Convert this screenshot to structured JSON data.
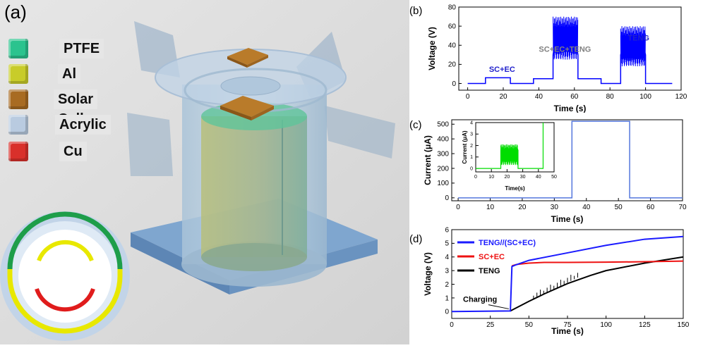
{
  "panel_a": {
    "label": "(a)",
    "legend": [
      {
        "name": "PTFE",
        "color": "#2bc38e"
      },
      {
        "name": "Al",
        "color": "#c8cc2a"
      },
      {
        "name": "Solar Cell",
        "color": "#a86b22"
      },
      {
        "name": "Acrylic",
        "color": "#b9cbe0"
      },
      {
        "name": "Cu",
        "color": "#d9302b"
      }
    ]
  },
  "chart_data": [
    {
      "id": "b",
      "label": "(b)",
      "type": "line",
      "xlabel": "Time (s)",
      "ylabel": "Voltage (V)",
      "xlim": [
        -5,
        120
      ],
      "ylim": [
        -7,
        80
      ],
      "xticks": [
        0,
        20,
        40,
        60,
        80,
        100,
        120
      ],
      "yticks": [
        0,
        20,
        40,
        60,
        80
      ],
      "annotations": [
        {
          "text": "SC+EC",
          "x": 12,
          "y": 12,
          "color": "#2222cc"
        },
        {
          "text": "SC+EC+TENG",
          "x": 40,
          "y": 33,
          "color": "#808080"
        },
        {
          "text": "TENG",
          "x": 90,
          "y": 45,
          "color": "#2222cc"
        }
      ],
      "series": [
        {
          "color": "#0000ff",
          "x": [
            0,
            10,
            10,
            24,
            24,
            37,
            37,
            48,
            48,
            50,
            60,
            62,
            62,
            75,
            75,
            86,
            86,
            88,
            98,
            100,
            100,
            115
          ],
          "y": [
            0,
            0,
            6,
            6,
            0,
            0,
            5,
            5,
            30,
            55,
            55,
            30,
            5,
            5,
            0,
            0,
            30,
            45,
            45,
            30,
            0,
            0
          ]
        }
      ],
      "noise_bands": [
        {
          "x0": 48,
          "x1": 62,
          "ymin": 25,
          "ymax": 70
        },
        {
          "x0": 86,
          "x1": 100,
          "ymin": 18,
          "ymax": 60
        }
      ]
    },
    {
      "id": "c",
      "label": "(c)",
      "type": "line",
      "xlabel": "Time (s)",
      "ylabel": "Current (μA)",
      "xlim": [
        -2,
        70
      ],
      "ylim": [
        -20,
        530
      ],
      "xticks": [
        0,
        10,
        20,
        30,
        40,
        50,
        60,
        70
      ],
      "yticks": [
        0,
        100,
        200,
        300,
        400,
        500
      ],
      "series": [
        {
          "color": "#5577dd",
          "x": [
            0,
            35.5,
            35.5,
            53.5,
            53.5,
            70
          ],
          "y": [
            0,
            0,
            520,
            520,
            0,
            0
          ]
        }
      ],
      "inset": {
        "xlabel": "Time(s)",
        "ylabel": "Current (μA)",
        "xlim": [
          0,
          50
        ],
        "ylim": [
          -0.3,
          4
        ],
        "xticks": [
          0,
          10,
          20,
          30,
          40,
          50
        ],
        "yticks": [
          0,
          1,
          2,
          3,
          4
        ],
        "series": [
          {
            "color": "#00dd00",
            "x": [
              0,
              16,
              16,
              27,
              27,
              43,
              43
            ],
            "y": [
              0,
              0,
              1.6,
              1.6,
              0,
              0,
              4
            ]
          }
        ],
        "noise_bands": [
          {
            "x0": 16,
            "x1": 27,
            "ymin": 0.3,
            "ymax": 2.1
          }
        ]
      }
    },
    {
      "id": "d",
      "label": "(d)",
      "type": "line",
      "xlabel": "Time (s)",
      "ylabel": "Voltage (V)",
      "xlim": [
        0,
        150
      ],
      "ylim": [
        -0.5,
        6
      ],
      "xticks": [
        0,
        25,
        50,
        75,
        100,
        125,
        150
      ],
      "yticks": [
        0,
        1,
        2,
        3,
        4,
        5,
        6
      ],
      "legend": [
        "TENG//(SC+EC)",
        "SC+EC",
        "TENG"
      ],
      "annotation": {
        "text": "Charging",
        "x": 37,
        "y": 0.2
      },
      "series": [
        {
          "name": "TENG//(SC+EC)",
          "color": "#1a1aff",
          "x": [
            0,
            38,
            39,
            41,
            50,
            75,
            100,
            125,
            150
          ],
          "y": [
            0,
            0.05,
            3.3,
            3.4,
            3.75,
            4.3,
            4.85,
            5.3,
            5.5
          ]
        },
        {
          "name": "SC+EC",
          "color": "#ee1111",
          "x": [
            39,
            42,
            50,
            60,
            75,
            100,
            125,
            150
          ],
          "y": [
            3.35,
            3.45,
            3.55,
            3.6,
            3.6,
            3.62,
            3.65,
            3.7
          ]
        },
        {
          "name": "TENG",
          "color": "#000000",
          "x": [
            38,
            50,
            60,
            75,
            90,
            100,
            125,
            150
          ],
          "y": [
            0.05,
            0.75,
            1.3,
            2.05,
            2.65,
            3.0,
            3.55,
            4.0
          ]
        }
      ]
    }
  ]
}
